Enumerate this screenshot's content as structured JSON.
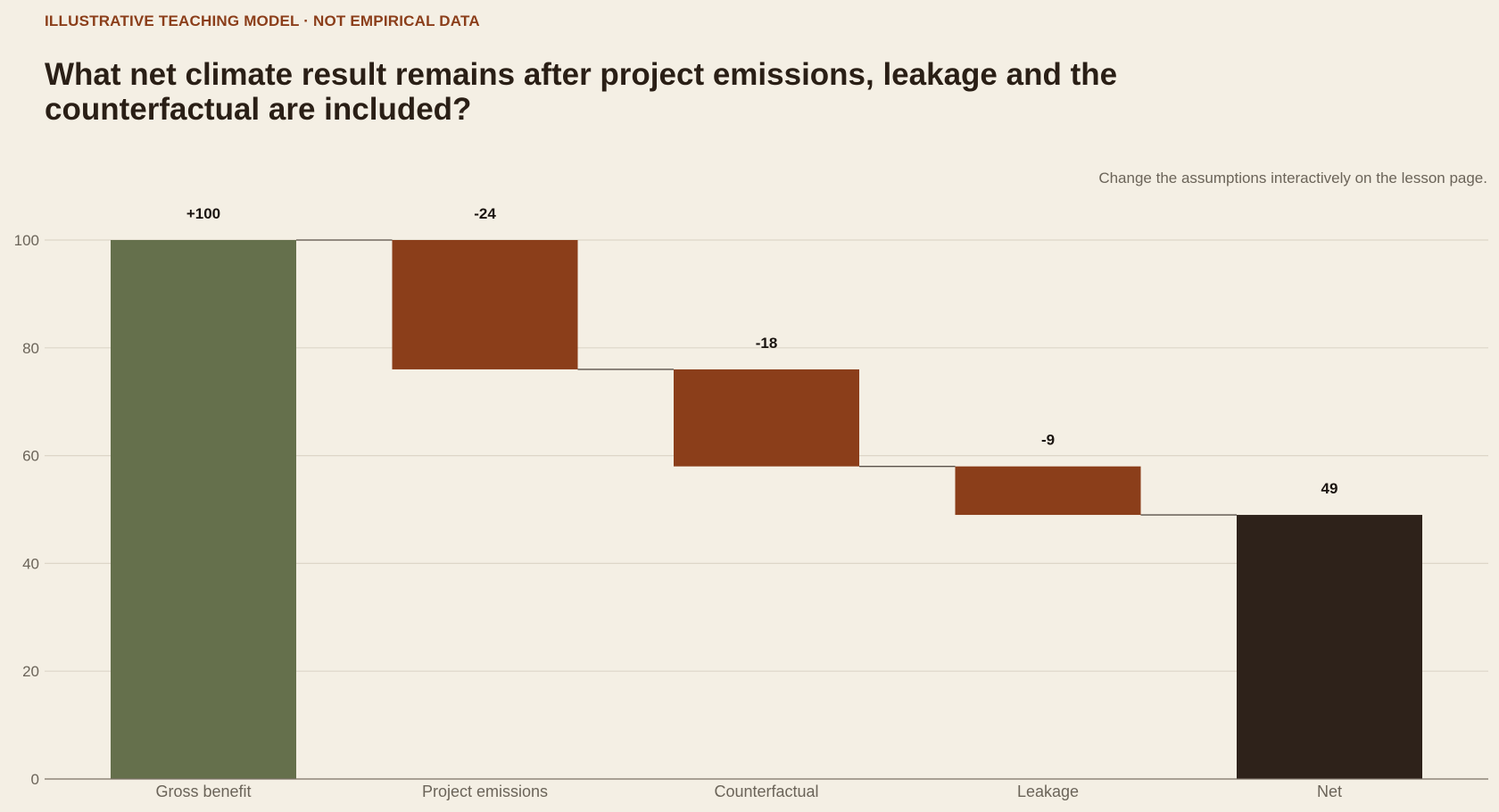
{
  "header": {
    "kicker": "ILLUSTRATIVE TEACHING MODEL · NOT EMPIRICAL DATA",
    "title": "What net climate result remains after project emissions, leakage and the counterfactual are included?",
    "note": "Change the assumptions interactively on the lesson page."
  },
  "colors": {
    "background": "#f4efe4",
    "accent": "#8b3e1a",
    "positive": "#65704c",
    "negative": "#8b3e1a",
    "total": "#2e221a",
    "grid": "#ddd6c8",
    "connector": "#5a524a"
  },
  "chart_data": {
    "type": "bar",
    "subtype": "waterfall",
    "title": "What net climate result remains after project emissions, leakage and the counterfactual are included?",
    "xlabel": "",
    "ylabel": "",
    "ylim": [
      0,
      100
    ],
    "yticks": [
      0,
      20,
      40,
      60,
      80,
      100
    ],
    "grid": true,
    "categories": [
      "Gross benefit",
      "Project emissions",
      "Counterfactual",
      "Leakage",
      "Net"
    ],
    "steps": [
      {
        "category": "Gross benefit",
        "kind": "start",
        "value": 100,
        "label": "+100"
      },
      {
        "category": "Project emissions",
        "kind": "decrease",
        "value": -24,
        "label": "-24"
      },
      {
        "category": "Counterfactual",
        "kind": "decrease",
        "value": -18,
        "label": "-18"
      },
      {
        "category": "Leakage",
        "kind": "decrease",
        "value": -9,
        "label": "-9"
      },
      {
        "category": "Net",
        "kind": "total",
        "value": 49,
        "label": "49"
      }
    ]
  }
}
